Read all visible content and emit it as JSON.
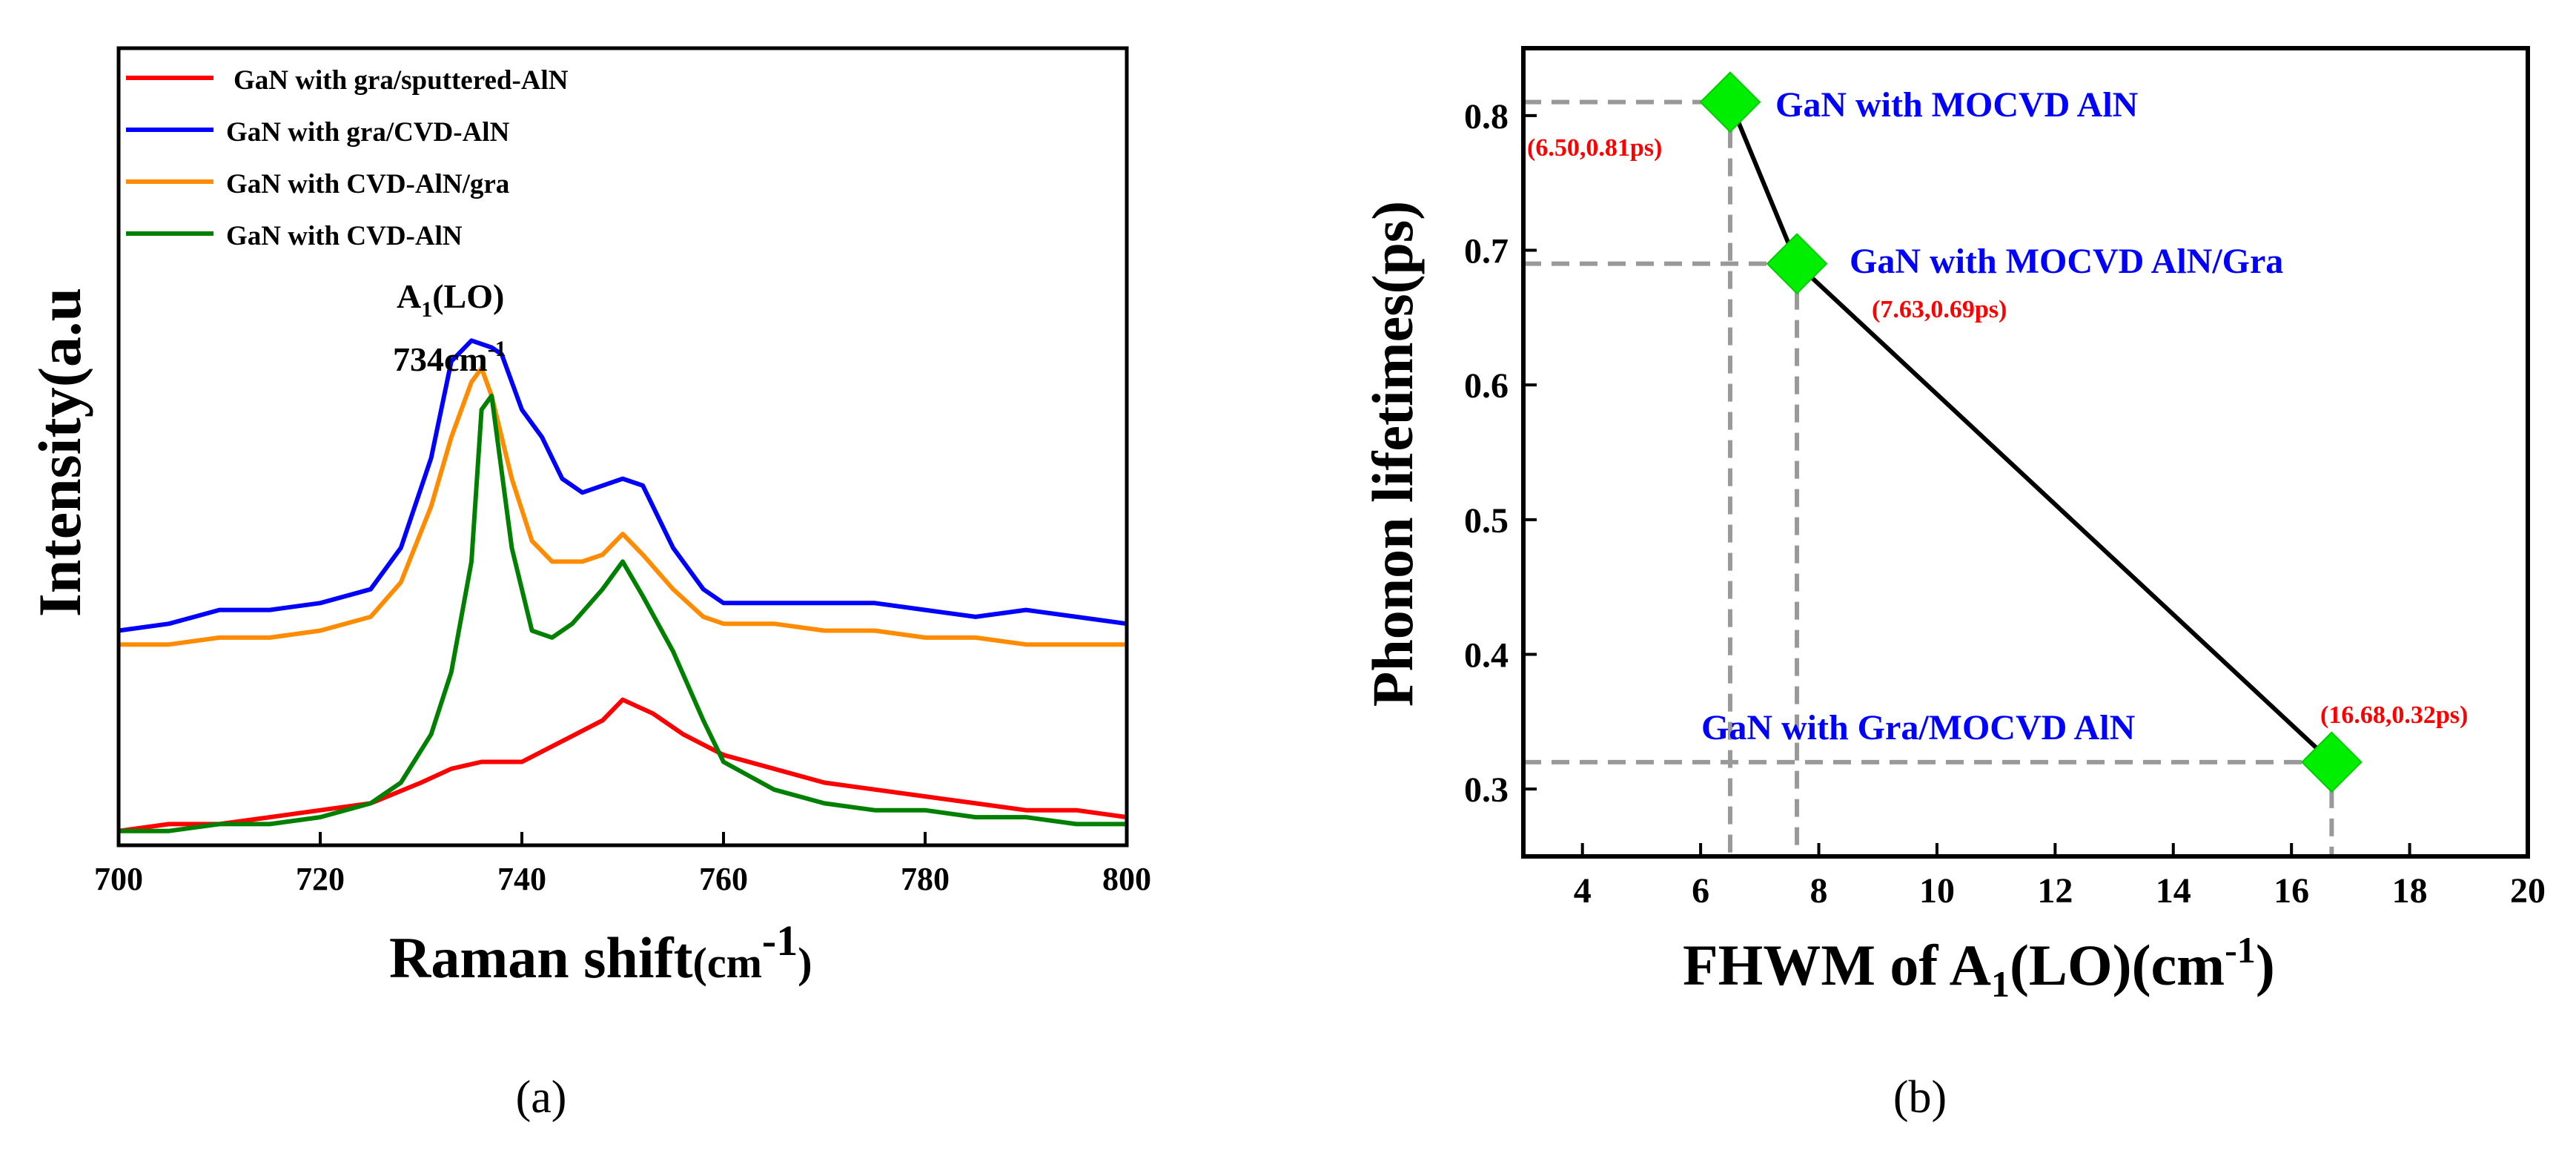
{
  "chart_data": [
    {
      "panel": "(a)",
      "type": "line",
      "xlabel": "Raman shift",
      "xlabel_unit_base": "(cm",
      "xlabel_unit_exp": "-1",
      "xlabel_unit_close": ")",
      "ylabel": "Intensity(a.u",
      "xlim": [
        700,
        800
      ],
      "ylim": [
        0,
        100
      ],
      "xticks": [
        700,
        720,
        740,
        760,
        780,
        800
      ],
      "peak_label_base": "A",
      "peak_label_sub": "1",
      "peak_label_rest": "(LO)",
      "peak_pos_base": "734cm",
      "peak_pos_exp": "-1",
      "legend_position": "top-left",
      "colors": {
        "red": "#ff0000",
        "blue": "#0000ff",
        "orange": "#ff8c00",
        "green": "#008000"
      },
      "series": [
        {
          "name": "GaN with gra/sputtered-AlN",
          "color": "#ff0000",
          "x": [
            700,
            705,
            710,
            715,
            720,
            725,
            730,
            733,
            736,
            740,
            744,
            748,
            750,
            753,
            756,
            760,
            765,
            770,
            775,
            780,
            785,
            790,
            795,
            800
          ],
          "y": [
            1,
            2,
            2,
            3,
            4,
            5,
            8,
            10,
            11,
            11,
            14,
            17,
            20,
            18,
            15,
            12,
            10,
            8,
            7,
            6,
            5,
            4,
            4,
            3
          ]
        },
        {
          "name": "GaN with gra/CVD-AlN",
          "color": "#0000ff",
          "x": [
            700,
            705,
            710,
            715,
            720,
            725,
            728,
            731,
            733,
            735,
            737,
            738,
            740,
            742,
            744,
            746,
            748,
            750,
            752,
            755,
            758,
            760,
            765,
            770,
            775,
            780,
            785,
            790,
            795,
            800
          ],
          "y": [
            30,
            31,
            33,
            33,
            34,
            36,
            42,
            55,
            69,
            72,
            71,
            70,
            62,
            58,
            52,
            50,
            51,
            52,
            51,
            42,
            36,
            34,
            34,
            34,
            34,
            33,
            32,
            33,
            32,
            31
          ]
        },
        {
          "name": "GaN with CVD-AlN/gra",
          "color": "#ff8c00",
          "x": [
            700,
            705,
            710,
            715,
            720,
            725,
            728,
            731,
            733,
            735,
            736,
            737,
            739,
            741,
            743,
            746,
            748,
            750,
            752,
            755,
            758,
            760,
            765,
            770,
            775,
            780,
            785,
            790,
            795,
            800
          ],
          "y": [
            28,
            28,
            29,
            29,
            30,
            32,
            37,
            48,
            58,
            66,
            68,
            64,
            52,
            43,
            40,
            40,
            41,
            44,
            41,
            36,
            32,
            31,
            31,
            30,
            30,
            29,
            29,
            28,
            28,
            28
          ]
        },
        {
          "name": "GaN with CVD-AlN",
          "color": "#008000",
          "x": [
            700,
            705,
            710,
            715,
            720,
            725,
            728,
            731,
            733,
            735,
            736,
            737,
            739,
            741,
            743,
            745,
            748,
            750,
            752,
            755,
            758,
            760,
            765,
            770,
            775,
            780,
            785,
            790,
            795,
            800
          ],
          "y": [
            1,
            1,
            2,
            2,
            3,
            5,
            8,
            15,
            24,
            40,
            62,
            64,
            42,
            30,
            29,
            31,
            36,
            40,
            35,
            27,
            17,
            11,
            7,
            5,
            4,
            4,
            3,
            3,
            2,
            2
          ]
        }
      ]
    },
    {
      "panel": "(b)",
      "type": "scatter",
      "xlabel_base": "FHWM of A",
      "xlabel_sub": "1",
      "xlabel_mid": "(LO)(cm",
      "xlabel_exp": "-1",
      "xlabel_close": ")",
      "ylabel": "Phonon lifetimes(ps)",
      "xlim": [
        3,
        20
      ],
      "ylim": [
        0.25,
        0.85
      ],
      "xticks": [
        4,
        6,
        8,
        10,
        12,
        14,
        16,
        18,
        20
      ],
      "yticks": [
        "0.3",
        "0.4",
        "0.5",
        "0.6",
        "0.7",
        "0.8"
      ],
      "marker_color": "#00ee00",
      "line_color": "#000000",
      "guide_color": "#999999",
      "label_color": "#0000ff",
      "value_color": "#ff0000",
      "points": [
        {
          "x": 6.5,
          "y": 0.81,
          "name": "GaN with MOCVD AlN",
          "value_label": "(6.50,0.81ps)"
        },
        {
          "x": 7.63,
          "y": 0.69,
          "name": "GaN with MOCVD AlN/Gra",
          "value_label": "(7.63,0.69ps)"
        },
        {
          "x": 16.68,
          "y": 0.32,
          "name": "GaN with Gra/MOCVD AlN",
          "value_label": "(16.68,0.32ps)"
        }
      ]
    }
  ],
  "captions": {
    "a": "(a)",
    "b": "(b)"
  }
}
